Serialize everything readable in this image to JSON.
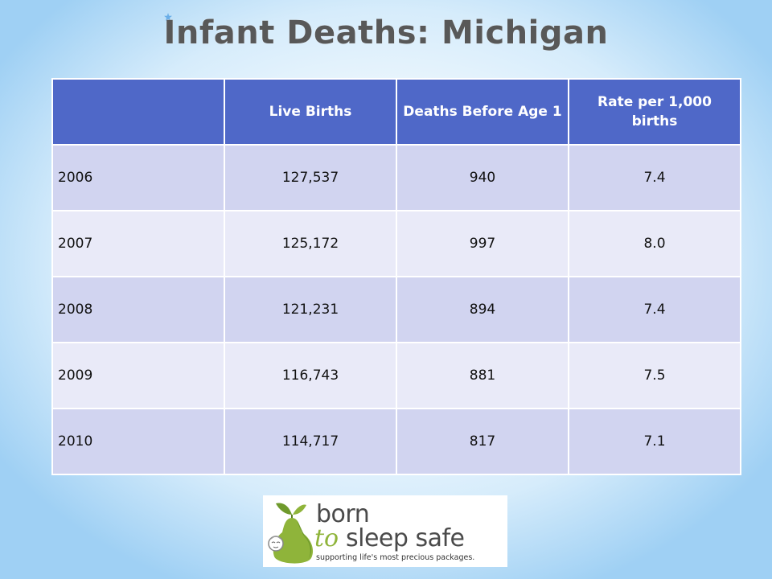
{
  "title": "Infant Deaths: Michigan",
  "table": {
    "headers": [
      "",
      "Live Births",
      "Deaths Before Age 1",
      "Rate per 1,000 births"
    ],
    "rows": [
      {
        "year": "2006",
        "live_births": "127,537",
        "deaths": "940",
        "rate": "7.4"
      },
      {
        "year": "2007",
        "live_births": "125,172",
        "deaths": "997",
        "rate": "8.0"
      },
      {
        "year": "2008",
        "live_births": "121,231",
        "deaths": "894",
        "rate": "7.4"
      },
      {
        "year": "2009",
        "live_births": "116,743",
        "deaths": "881",
        "rate": "7.5"
      },
      {
        "year": "2010",
        "live_births": "114,717",
        "deaths": "817",
        "rate": "7.1"
      }
    ]
  },
  "logo": {
    "word_born": "born",
    "word_to": "to",
    "word_sleep_safe": "sleep safe",
    "tagline": "supporting life's most precious packages."
  },
  "colors": {
    "header_bg": "#4f68c8",
    "row_odd": "#d1d4f0",
    "row_even": "#e9eaf8",
    "title": "#585858",
    "logo_green": "#8fb43a"
  },
  "icons": [
    "star-bullet-icon",
    "pear-baby-logo-icon"
  ]
}
